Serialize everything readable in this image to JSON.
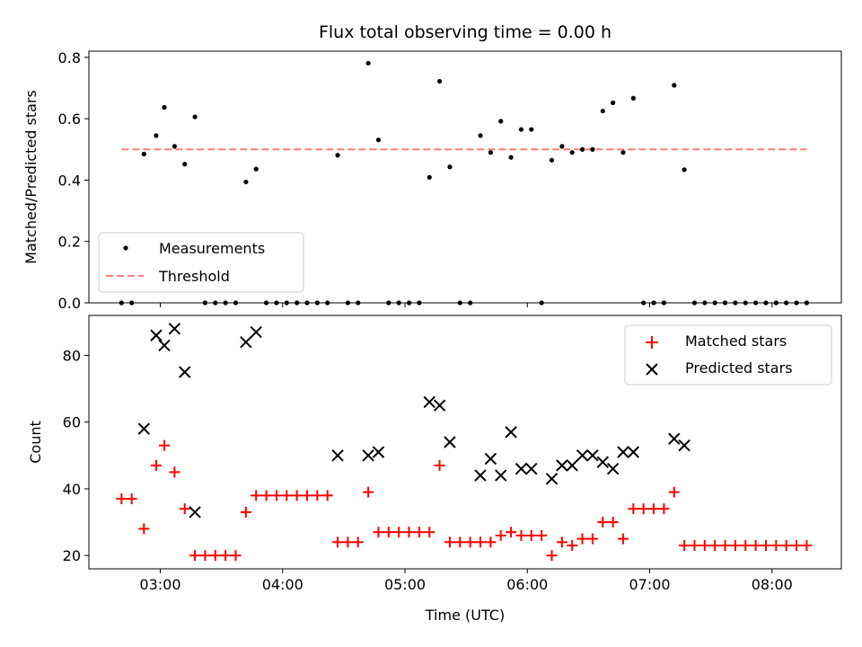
{
  "chart_data": [
    {
      "type": "scatter",
      "title": "Flux total observing time = 0.00 h",
      "xlabel": "",
      "ylabel": "Matched/Predicted stars",
      "ylim": [
        0,
        0.82
      ],
      "yticks": [
        0.0,
        0.2,
        0.4,
        0.6,
        0.8
      ],
      "ytick_labels": [
        "0.0",
        "0.2",
        "0.4",
        "0.6",
        "0.8"
      ],
      "xlim": [
        "02:25",
        "08:34"
      ],
      "xticks": [
        "03:00",
        "04:00",
        "05:00",
        "06:00",
        "07:00",
        "08:00"
      ],
      "x_tick_labels_shown": false,
      "grid": false,
      "legend_position": "lower-left",
      "series": [
        {
          "name": "Measurements",
          "kind": "scatter",
          "color": "#000000",
          "points": [
            [
              "02:41",
              0
            ],
            [
              "02:46",
              0
            ],
            [
              "02:52",
              0.485
            ],
            [
              "02:58",
              0.545
            ],
            [
              "03:02",
              0.637
            ],
            [
              "03:07",
              0.51
            ],
            [
              "03:12",
              0.452
            ],
            [
              "03:17",
              0.606
            ],
            [
              "03:22",
              0
            ],
            [
              "03:27",
              0
            ],
            [
              "03:32",
              0
            ],
            [
              "03:37",
              0
            ],
            [
              "03:42",
              0.394
            ],
            [
              "03:47",
              0.436
            ],
            [
              "03:52",
              0
            ],
            [
              "03:57",
              0
            ],
            [
              "04:02",
              0
            ],
            [
              "04:07",
              0
            ],
            [
              "04:12",
              0
            ],
            [
              "04:17",
              0
            ],
            [
              "04:22",
              0
            ],
            [
              "04:27",
              0.481
            ],
            [
              "04:32",
              0
            ],
            [
              "04:37",
              0
            ],
            [
              "04:42",
              0.781
            ],
            [
              "04:47",
              0.531
            ],
            [
              "04:52",
              0
            ],
            [
              "04:57",
              0
            ],
            [
              "05:02",
              0
            ],
            [
              "05:07",
              0
            ],
            [
              "05:12",
              0.409
            ],
            [
              "05:17",
              0.722
            ],
            [
              "05:22",
              0.443
            ],
            [
              "05:27",
              0
            ],
            [
              "05:32",
              0
            ],
            [
              "05:37",
              0.545
            ],
            [
              "05:42",
              0.49
            ],
            [
              "05:47",
              0.592
            ],
            [
              "05:52",
              0.474
            ],
            [
              "05:57",
              0.565
            ],
            [
              "06:02",
              0.565
            ],
            [
              "06:07",
              0
            ],
            [
              "06:12",
              0.465
            ],
            [
              "06:17",
              0.51
            ],
            [
              "06:22",
              0.49
            ],
            [
              "06:27",
              0.5
            ],
            [
              "06:32",
              0.5
            ],
            [
              "06:37",
              0.625
            ],
            [
              "06:42",
              0.652
            ],
            [
              "06:47",
              0.49
            ],
            [
              "06:52",
              0.667
            ],
            [
              "06:57",
              0
            ],
            [
              "07:02",
              0
            ],
            [
              "07:07",
              0
            ],
            [
              "07:12",
              0.709
            ],
            [
              "07:17",
              0.434
            ],
            [
              "07:22",
              0
            ],
            [
              "07:27",
              0
            ],
            [
              "07:32",
              0
            ],
            [
              "07:37",
              0
            ],
            [
              "07:42",
              0
            ],
            [
              "07:47",
              0
            ],
            [
              "07:52",
              0
            ],
            [
              "07:57",
              0
            ],
            [
              "08:02",
              0
            ],
            [
              "08:07",
              0
            ],
            [
              "08:12",
              0
            ],
            [
              "08:17",
              0
            ]
          ]
        },
        {
          "name": "Threshold",
          "kind": "line",
          "style": "dashed",
          "color": "#ff7b7b",
          "x": [
            "02:41",
            "08:17"
          ],
          "y": [
            0.5,
            0.5
          ]
        }
      ]
    },
    {
      "type": "scatter",
      "title": "",
      "xlabel": "Time (UTC)",
      "ylabel": "Count",
      "ylim": [
        16,
        92
      ],
      "yticks": [
        20,
        40,
        60,
        80
      ],
      "ytick_labels": [
        "20",
        "40",
        "60",
        "80"
      ],
      "xlim": [
        "02:25",
        "08:34"
      ],
      "xticks": [
        "03:00",
        "04:00",
        "05:00",
        "06:00",
        "07:00",
        "08:00"
      ],
      "xtick_labels": [
        "03:00",
        "04:00",
        "05:00",
        "06:00",
        "07:00",
        "08:00"
      ],
      "grid": false,
      "legend_position": "top-right",
      "series": [
        {
          "name": "Matched stars",
          "marker": "plus",
          "color": "#ff0000",
          "points": [
            [
              "02:41",
              37
            ],
            [
              "02:46",
              37
            ],
            [
              "02:52",
              28
            ],
            [
              "02:58",
              47
            ],
            [
              "03:02",
              53
            ],
            [
              "03:07",
              45
            ],
            [
              "03:12",
              34
            ],
            [
              "03:17",
              20
            ],
            [
              "03:22",
              20
            ],
            [
              "03:27",
              20
            ],
            [
              "03:32",
              20
            ],
            [
              "03:37",
              20
            ],
            [
              "03:42",
              33
            ],
            [
              "03:47",
              38
            ],
            [
              "03:52",
              38
            ],
            [
              "03:57",
              38
            ],
            [
              "04:02",
              38
            ],
            [
              "04:07",
              38
            ],
            [
              "04:12",
              38
            ],
            [
              "04:17",
              38
            ],
            [
              "04:22",
              38
            ],
            [
              "04:27",
              24
            ],
            [
              "04:32",
              24
            ],
            [
              "04:37",
              24
            ],
            [
              "04:42",
              39
            ],
            [
              "04:47",
              27
            ],
            [
              "04:52",
              27
            ],
            [
              "04:57",
              27
            ],
            [
              "05:02",
              27
            ],
            [
              "05:07",
              27
            ],
            [
              "05:12",
              27
            ],
            [
              "05:17",
              47
            ],
            [
              "05:22",
              24
            ],
            [
              "05:27",
              24
            ],
            [
              "05:32",
              24
            ],
            [
              "05:37",
              24
            ],
            [
              "05:42",
              24
            ],
            [
              "05:47",
              26
            ],
            [
              "05:52",
              27
            ],
            [
              "05:57",
              26
            ],
            [
              "06:02",
              26
            ],
            [
              "06:07",
              26
            ],
            [
              "06:12",
              20
            ],
            [
              "06:17",
              24
            ],
            [
              "06:22",
              23
            ],
            [
              "06:27",
              25
            ],
            [
              "06:32",
              25
            ],
            [
              "06:37",
              30
            ],
            [
              "06:42",
              30
            ],
            [
              "06:47",
              25
            ],
            [
              "06:52",
              34
            ],
            [
              "06:57",
              34
            ],
            [
              "07:02",
              34
            ],
            [
              "07:07",
              34
            ],
            [
              "07:12",
              39
            ],
            [
              "07:17",
              23
            ],
            [
              "07:22",
              23
            ],
            [
              "07:27",
              23
            ],
            [
              "07:32",
              23
            ],
            [
              "07:37",
              23
            ],
            [
              "07:42",
              23
            ],
            [
              "07:47",
              23
            ],
            [
              "07:52",
              23
            ],
            [
              "07:57",
              23
            ],
            [
              "08:02",
              23
            ],
            [
              "08:07",
              23
            ],
            [
              "08:12",
              23
            ],
            [
              "08:17",
              23
            ]
          ]
        },
        {
          "name": "Predicted stars",
          "marker": "x",
          "color": "#000000",
          "points": [
            [
              "02:52",
              58
            ],
            [
              "02:58",
              86
            ],
            [
              "03:02",
              83
            ],
            [
              "03:07",
              88
            ],
            [
              "03:12",
              75
            ],
            [
              "03:17",
              33
            ],
            [
              "03:42",
              84
            ],
            [
              "03:47",
              87
            ],
            [
              "04:27",
              50
            ],
            [
              "04:42",
              50
            ],
            [
              "04:47",
              51
            ],
            [
              "05:12",
              66
            ],
            [
              "05:17",
              65
            ],
            [
              "05:22",
              54
            ],
            [
              "05:37",
              44
            ],
            [
              "05:42",
              49
            ],
            [
              "05:47",
              44
            ],
            [
              "05:52",
              57
            ],
            [
              "05:57",
              46
            ],
            [
              "06:02",
              46
            ],
            [
              "06:12",
              43
            ],
            [
              "06:17",
              47
            ],
            [
              "06:22",
              47
            ],
            [
              "06:27",
              50
            ],
            [
              "06:32",
              50
            ],
            [
              "06:37",
              48
            ],
            [
              "06:42",
              46
            ],
            [
              "06:47",
              51
            ],
            [
              "06:52",
              51
            ],
            [
              "07:12",
              55
            ],
            [
              "07:17",
              53
            ]
          ]
        }
      ]
    }
  ]
}
